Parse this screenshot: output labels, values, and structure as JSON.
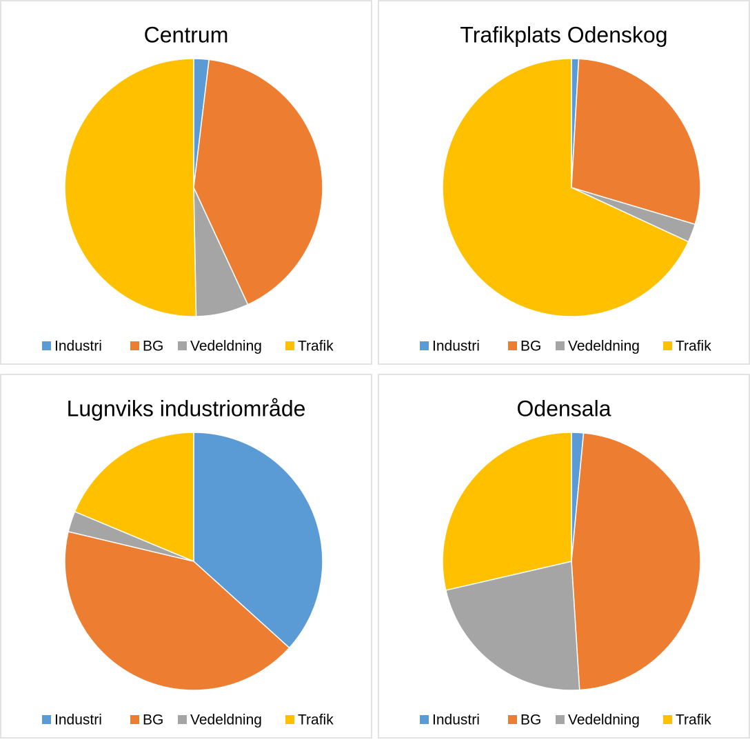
{
  "chart_data": [
    {
      "type": "pie",
      "title": "Centrum",
      "categories": [
        "Industri",
        "BG",
        "Vedeldning",
        "Trafik"
      ],
      "values": [
        1.9,
        41.2,
        6.6,
        50.3
      ],
      "colors": [
        "#5b9bd5",
        "#ed7d31",
        "#a5a5a5",
        "#ffc000"
      ]
    },
    {
      "type": "pie",
      "title": "Trafikplats Odenskog",
      "categories": [
        "Industri",
        "BG",
        "Vedeldning",
        "Trafik"
      ],
      "values": [
        0.9,
        28.7,
        2.3,
        68.1
      ],
      "colors": [
        "#5b9bd5",
        "#ed7d31",
        "#a5a5a5",
        "#ffc000"
      ]
    },
    {
      "type": "pie",
      "title": "Lugnviks industriområde",
      "categories": [
        "Industri",
        "BG",
        "Vedeldning",
        "Trafik"
      ],
      "values": [
        36.7,
        42.0,
        2.6,
        18.7
      ],
      "colors": [
        "#5b9bd5",
        "#ed7d31",
        "#a5a5a5",
        "#ffc000"
      ]
    },
    {
      "type": "pie",
      "title": "Odensala",
      "categories": [
        "Industri",
        "BG",
        "Vedeldning",
        "Trafik"
      ],
      "values": [
        1.5,
        47.5,
        22.4,
        28.6
      ],
      "colors": [
        "#5b9bd5",
        "#ed7d31",
        "#a5a5a5",
        "#ffc000"
      ]
    }
  ]
}
